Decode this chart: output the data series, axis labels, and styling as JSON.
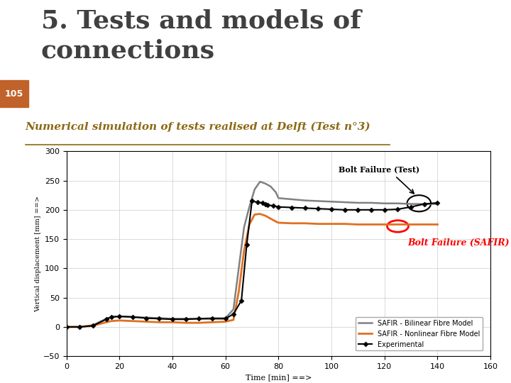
{
  "title": "5. Tests and models of\nconnections",
  "slide_number": "105",
  "subtitle": "Numerical simulation of tests realised at Delft (Test n°3)",
  "background_color": "#ffffff",
  "header_bar_color": "#7ab0c8",
  "slide_number_bg": "#c0622a",
  "title_color": "#404040",
  "subtitle_color": "#8b6914",
  "experimental_x": [
    0,
    5,
    10,
    15,
    17,
    20,
    25,
    30,
    35,
    40,
    45,
    50,
    55,
    60,
    63,
    66,
    68,
    70,
    72,
    74,
    75,
    76,
    78,
    80,
    85,
    90,
    95,
    100,
    105,
    110,
    115,
    120,
    125,
    130,
    135,
    140
  ],
  "experimental_y": [
    0,
    0,
    2,
    13,
    17,
    18,
    17,
    15,
    14,
    13,
    13,
    14,
    14,
    14,
    22,
    45,
    140,
    215,
    213,
    212,
    210,
    208,
    207,
    205,
    204,
    203,
    202,
    201,
    200,
    200,
    200,
    200,
    201,
    205,
    210,
    212
  ],
  "bilinear_x": [
    0,
    5,
    10,
    15,
    17,
    20,
    25,
    30,
    35,
    40,
    45,
    50,
    55,
    60,
    63,
    65,
    67,
    69,
    71,
    73,
    75,
    77,
    79,
    80,
    85,
    90,
    95,
    100,
    105,
    110,
    115,
    120,
    125,
    130,
    135,
    140
  ],
  "bilinear_y": [
    0,
    0,
    3,
    14,
    17,
    18,
    17,
    16,
    15,
    14,
    14,
    14,
    15,
    15,
    30,
    100,
    170,
    205,
    235,
    248,
    245,
    240,
    230,
    220,
    218,
    216,
    215,
    214,
    213,
    212,
    212,
    211,
    211,
    210,
    210,
    210
  ],
  "nonlinear_x": [
    0,
    5,
    10,
    15,
    17,
    20,
    25,
    30,
    35,
    40,
    45,
    50,
    55,
    60,
    63,
    65,
    67,
    69,
    71,
    73,
    75,
    77,
    79,
    80,
    85,
    90,
    95,
    100,
    105,
    110,
    115,
    120,
    125,
    130,
    135,
    140
  ],
  "nonlinear_y": [
    0,
    0,
    2,
    8,
    10,
    11,
    10,
    9,
    8,
    8,
    7,
    7,
    8,
    9,
    12,
    60,
    130,
    175,
    192,
    193,
    190,
    185,
    180,
    178,
    177,
    177,
    176,
    176,
    176,
    175,
    175,
    175,
    175,
    175,
    175,
    175
  ],
  "xlabel": "Time [min] ==>",
  "ylabel": "Vertical displacement [mm] ==>",
  "xlim": [
    0,
    160
  ],
  "ylim": [
    -50,
    300
  ],
  "xticks": [
    0,
    20,
    40,
    60,
    80,
    100,
    120,
    140,
    160
  ],
  "yticks": [
    -50,
    0,
    50,
    100,
    150,
    200,
    250,
    300
  ],
  "legend_labels": [
    "Experimental",
    "SAFIR - Bilinear Fibre Model",
    "SAFIR - Nonlinear Fibre Model"
  ],
  "experimental_color": "#000000",
  "bilinear_color": "#808080",
  "nonlinear_color": "#e07020",
  "annotation_test_text": "Bolt Failure (Test)",
  "annotation_safir_text": "Bolt Failure (SAFIR)"
}
